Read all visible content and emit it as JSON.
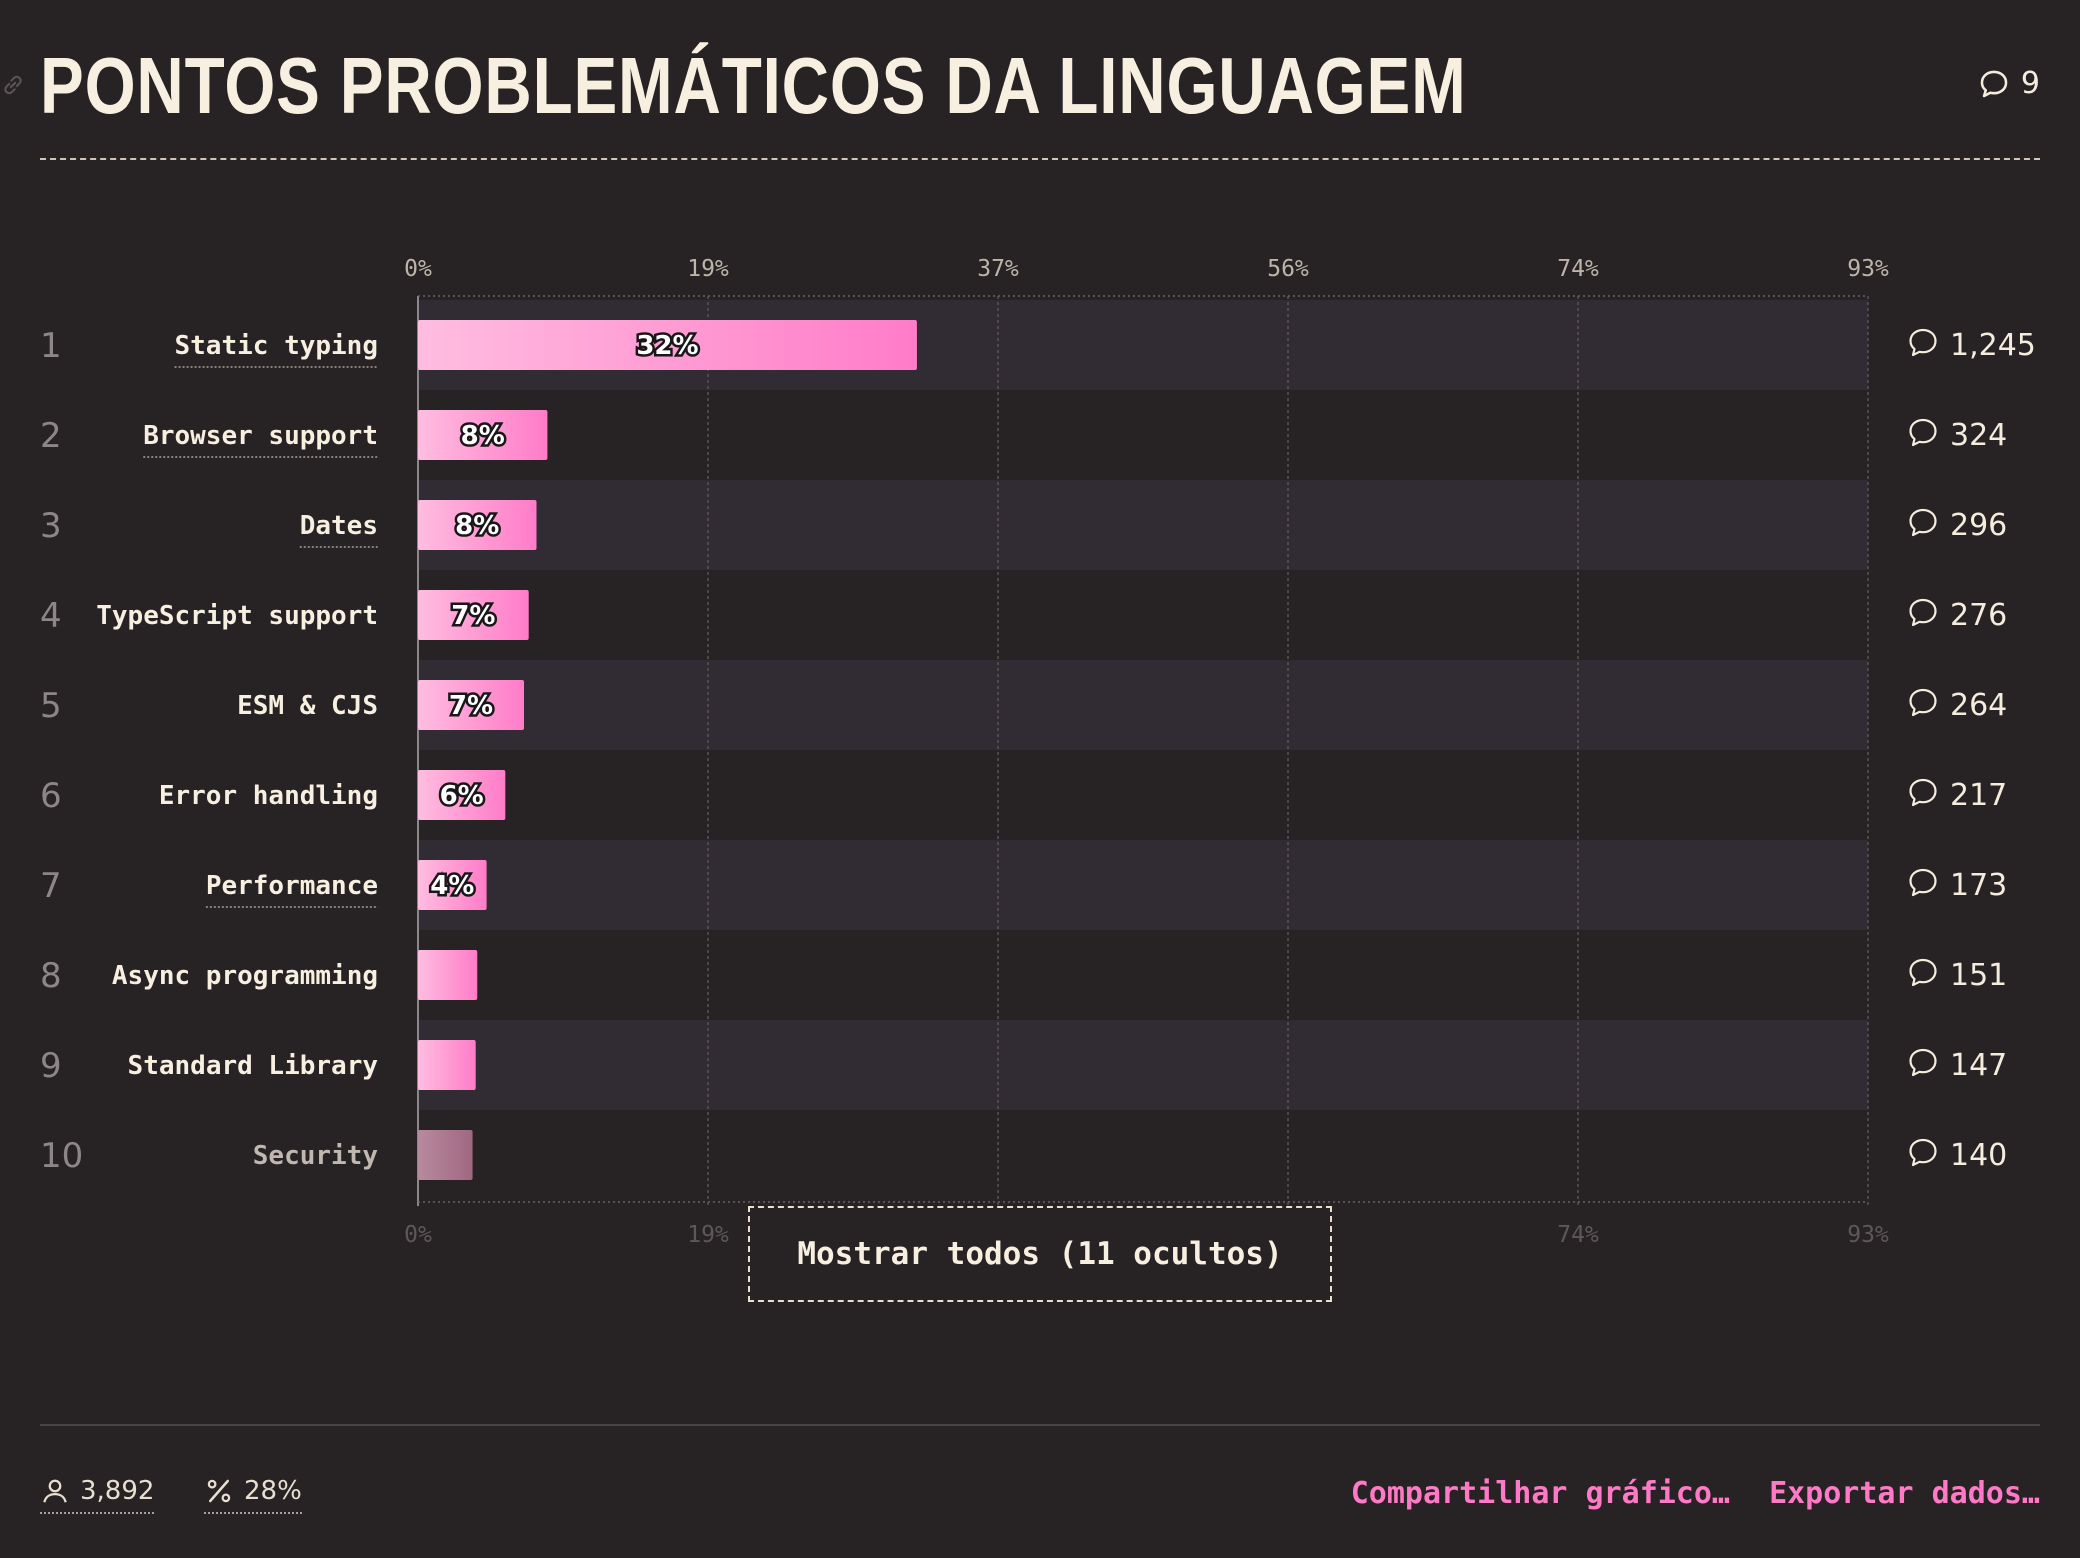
{
  "header": {
    "title": "PONTOS PROBLEMÁTICOS DA LINGUAGEM",
    "comment_count": "9"
  },
  "chart_data": {
    "type": "bar",
    "orientation": "horizontal",
    "title": "PONTOS PROBLEMÁTICOS DA LINGUAGEM",
    "xlim": [
      0,
      93
    ],
    "x_ticks": [
      "0%",
      "19%",
      "37%",
      "56%",
      "74%",
      "93%"
    ],
    "grid": true,
    "categories": [
      "Static typing",
      "Browser support",
      "Dates",
      "TypeScript support",
      "ESM & CJS",
      "Error handling",
      "Performance",
      "Async programming",
      "Standard Library",
      "Security"
    ],
    "ranks": [
      "1",
      "2",
      "3",
      "4",
      "5",
      "6",
      "7",
      "8",
      "9",
      "10"
    ],
    "values": [
      32,
      8.3,
      7.6,
      7.1,
      6.8,
      5.6,
      4.4,
      3.8,
      3.7,
      3.5
    ],
    "value_labels": [
      "32%",
      "8%",
      "8%",
      "7%",
      "7%",
      "6%",
      "4%",
      "",
      "",
      ""
    ],
    "comment_counts": [
      "1,245",
      "324",
      "296",
      "276",
      "264",
      "217",
      "173",
      "151",
      "147",
      "140"
    ],
    "colors": {
      "bar_start": "#ffbde0",
      "bar_end": "#ff7cc8",
      "muted_start": "#b88a9e",
      "muted_end": "#a06882",
      "row_alt": "#312b34"
    }
  },
  "show_all": {
    "label": "Mostrar todos (11 ocultos)"
  },
  "footer": {
    "respondents": "3,892",
    "percentage": "28%",
    "share_label": "Compartilhar gráfico…",
    "export_label": "Exportar dados…"
  }
}
